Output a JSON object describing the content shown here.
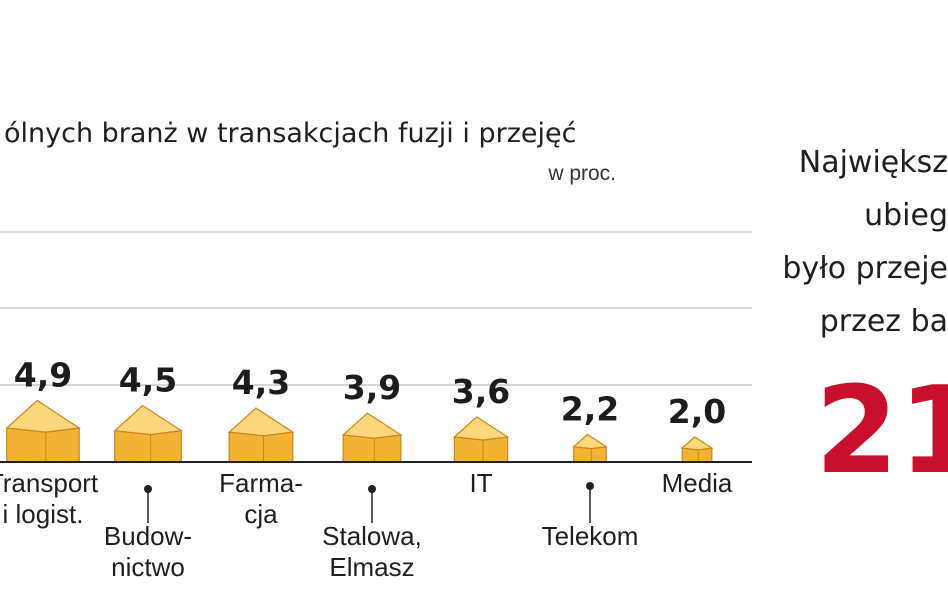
{
  "chart_data": {
    "type": "bar",
    "title": "ólnych branż w transakcjach fuzji i przejęć",
    "unit": "w proc.",
    "categories": [
      [
        "Transport",
        "i logist."
      ],
      [
        "Budow-",
        "nictwo"
      ],
      [
        "Farma-",
        "cja"
      ],
      [
        "Stalowa,",
        "Elmasz"
      ],
      [
        "IT"
      ],
      [
        "Telekom"
      ],
      [
        "Media"
      ]
    ],
    "values": [
      4.9,
      4.5,
      4.3,
      3.9,
      3.6,
      2.2,
      2.0
    ],
    "value_labels": [
      "4,9",
      "4,5",
      "4,3",
      "3,9",
      "3,6",
      "2,2",
      "2,0"
    ],
    "grid": true
  },
  "side_panel": {
    "lines": [
      "Największ",
      "ubieg",
      "było przeje",
      "przez ba"
    ],
    "big_number": "21"
  },
  "colors": {
    "bar_front": "#f2b233",
    "bar_top": "#fcd77e",
    "bar_edge": "#c9871b",
    "highlight": "#c8102e",
    "grid": "#c8c8c8",
    "axis": "#222222"
  }
}
